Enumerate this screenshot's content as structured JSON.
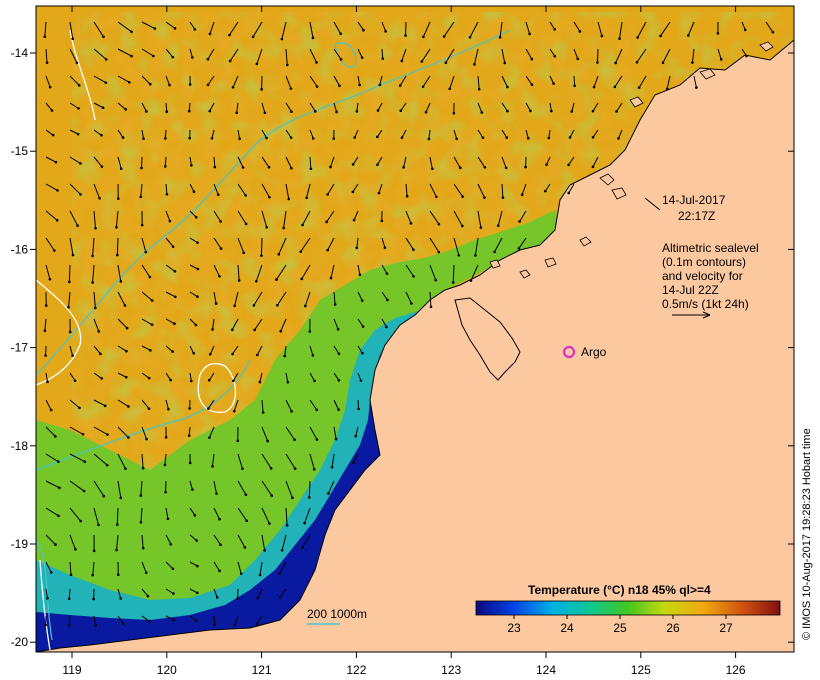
{
  "map": {
    "date_line1": "14-Jul-2017",
    "date_line2": "22:17Z",
    "legend_lines": [
      "Altimetric sealevel",
      "(0.1m contours)",
      "and velocity for",
      "14-Jul 22Z",
      "0.5m/s (1kt 24h)"
    ],
    "argo_label": "Argo",
    "depth_contours_label": "200  1000m",
    "credit": "© IMOS 10-Aug-2017 19:28:23 Hobart time",
    "lon_ticks": [
      "119",
      "120",
      "121",
      "122",
      "123",
      "124",
      "125",
      "126"
    ],
    "lat_ticks": [
      "-14",
      "-15",
      "-16",
      "-17",
      "-18",
      "-19",
      "-20"
    ],
    "colorbar": {
      "title": "Temperature (°C) n18 45% ql>=4",
      "ticks": [
        "23",
        "24",
        "25",
        "26",
        "27"
      ]
    },
    "colors": {
      "land": "#fcc8a0",
      "warm": "#e3a81a",
      "mid": "#7ccf2a",
      "cool": "#00a0d8",
      "cold": "#0a1a9c",
      "sla_contour": "#40c8d0",
      "argo": "#e020c8"
    }
  }
}
